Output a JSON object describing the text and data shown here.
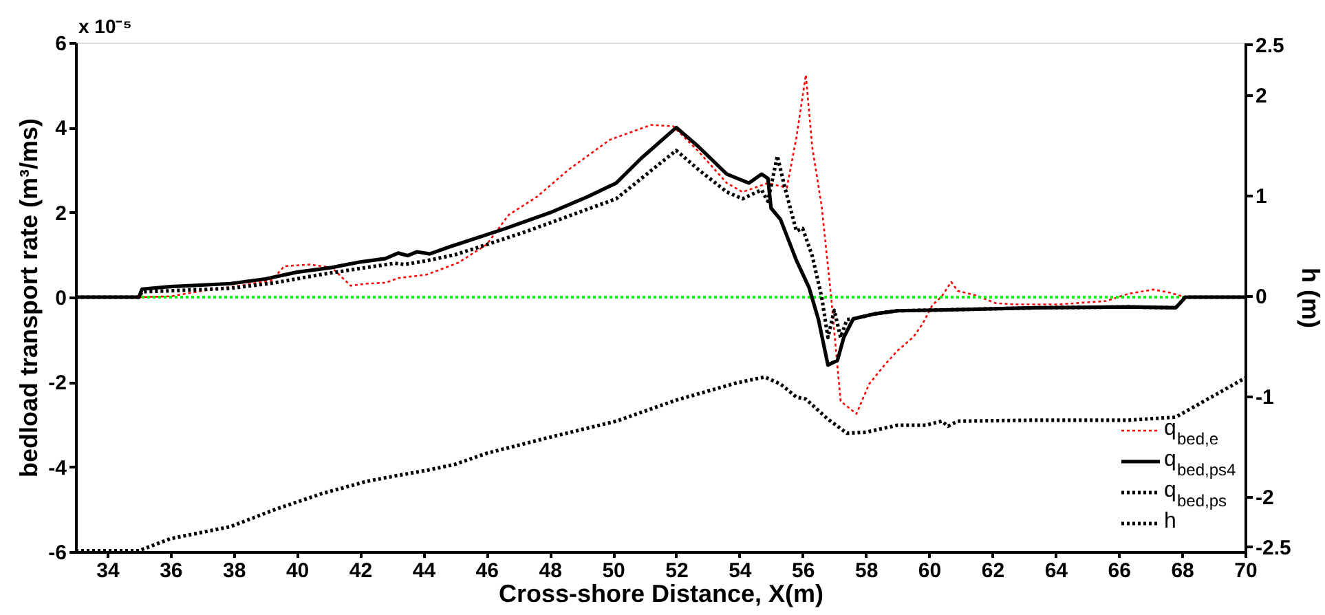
{
  "chart_data": {
    "type": "line",
    "xlabel": "Cross-shore Distance, X(m)",
    "ylabel": "bedload transport rate (m³/ms)",
    "y2label": "h (m)",
    "annotations": [
      "x 10⁻⁵"
    ],
    "xlim": [
      33,
      70
    ],
    "xticks": [
      34,
      36,
      38,
      40,
      42,
      44,
      46,
      48,
      50,
      52,
      54,
      56,
      58,
      60,
      62,
      64,
      66,
      68,
      70
    ],
    "ylim": [
      -6,
      6
    ],
    "yticks": [
      -6,
      -4,
      -2,
      0,
      2,
      4,
      6
    ],
    "y2lim": [
      -2.55,
      2.52
    ],
    "y2ticks": [
      -2.5,
      -2,
      -1,
      0,
      1,
      2,
      2.5
    ],
    "grid": false,
    "legend": "bottom right",
    "marker": "none",
    "ref_lines": [
      {
        "axis": "y",
        "value": 0,
        "color": "#00ff00",
        "line_style": "dotted"
      }
    ],
    "series": [
      {
        "name": "q$_{bed,e}$",
        "color": "#ff0000",
        "line_style": "dotted",
        "x": [
          35,
          36,
          37.1,
          38.2,
          39.2,
          39.6,
          40.4,
          41.1,
          41.7,
          42.2,
          42.8,
          43.2,
          44.1,
          45.1,
          46,
          46.7,
          47.6,
          48.6,
          49.9,
          51.2,
          51.9,
          52.7,
          53.6,
          54.1,
          54.9,
          55.5,
          55.8,
          56.1,
          56.3,
          56.6,
          56.9,
          57.2,
          57.7,
          58.1,
          58.6,
          59.0,
          59.5,
          59.8,
          60.1,
          60.4,
          60.7,
          60.9,
          61.5,
          62.1,
          62.7,
          64.1,
          65.6,
          66.3,
          67.1,
          67.6,
          68.1,
          70
        ],
        "values": [
          0,
          0.02,
          0.16,
          0.27,
          0.4,
          0.73,
          0.77,
          0.7,
          0.27,
          0.32,
          0.34,
          0.45,
          0.53,
          0.81,
          1.24,
          1.94,
          2.37,
          3.01,
          3.71,
          4.06,
          4.03,
          3.44,
          2.69,
          2.48,
          2.69,
          2.58,
          3.76,
          5.24,
          3.55,
          2.15,
          0.01,
          -2.45,
          -2.75,
          -2.05,
          -1.59,
          -1.26,
          -0.94,
          -0.62,
          -0.19,
          0.02,
          0.36,
          0.15,
          0.04,
          -0.14,
          -0.17,
          -0.17,
          -0.09,
          0.08,
          0.18,
          0.11,
          0,
          0
        ]
      },
      {
        "name": "q$_{bed,ps4}$",
        "color": "#000000",
        "line_style": "solid",
        "x": [
          33,
          35,
          35.1,
          36,
          37.9,
          39,
          40,
          41.1,
          42,
          42.8,
          43.2,
          43.5,
          43.8,
          44.2,
          44.8,
          45.5,
          46.6,
          48,
          49.2,
          50.1,
          50.9,
          52,
          52.7,
          53.6,
          54.3,
          54.7,
          54.9,
          55,
          55.3,
          55.8,
          56.2,
          56.5,
          56.8,
          57.1,
          57.3,
          57.6,
          58.3,
          59,
          60.5,
          63.4,
          66.3,
          67.8,
          68.0,
          68.1,
          70
        ],
        "values": [
          0,
          0,
          0.19,
          0.25,
          0.32,
          0.43,
          0.59,
          0.7,
          0.83,
          0.91,
          1.04,
          0.98,
          1.07,
          1.02,
          1.18,
          1.35,
          1.62,
          1.99,
          2.37,
          2.69,
          3.28,
          4.0,
          3.55,
          2.9,
          2.69,
          2.9,
          2.8,
          2.1,
          1.83,
          0.87,
          0.23,
          -0.53,
          -1.6,
          -1.49,
          -0.95,
          -0.51,
          -0.39,
          -0.32,
          -0.3,
          -0.25,
          -0.23,
          -0.25,
          -0.09,
          0,
          0
        ]
      },
      {
        "name": "q$_{bed,ps}$",
        "color": "#000000",
        "line_style": "dotted",
        "x": [
          33,
          35,
          35.1,
          36,
          37.9,
          39.3,
          40.8,
          42.2,
          43.1,
          43.4,
          44.1,
          45,
          45.8,
          47.3,
          48.7,
          50.1,
          50.9,
          52,
          52.7,
          53.6,
          54.1,
          54.7,
          54.9,
          55.2,
          55.4,
          55.8,
          56.0,
          56.3,
          56.6,
          56.8,
          57.0,
          57.2,
          57.4,
          57.6,
          58.3,
          59,
          60.5,
          63.4,
          66.3,
          67.8,
          68.0,
          68.1,
          70
        ],
        "values": [
          0,
          0,
          0.13,
          0.15,
          0.21,
          0.34,
          0.54,
          0.7,
          0.8,
          0.77,
          0.86,
          1.0,
          1.19,
          1.56,
          1.94,
          2.32,
          2.8,
          3.46,
          3.01,
          2.48,
          2.32,
          2.53,
          2.26,
          3.33,
          2.69,
          1.56,
          1.62,
          0.98,
          0.01,
          -0.95,
          -0.31,
          -0.95,
          -0.53,
          -0.51,
          -0.39,
          -0.32,
          -0.3,
          -0.25,
          -0.23,
          -0.25,
          -0.09,
          0,
          0
        ]
      },
      {
        "name": "h",
        "color": "#000000",
        "line_style": "dotted",
        "axis": "y2",
        "x": [
          33,
          35,
          36,
          37.9,
          39.3,
          40.8,
          42.2,
          43.2,
          44.1,
          45,
          46,
          48,
          50.1,
          52,
          53.9,
          54.8,
          55.3,
          55.8,
          56.1,
          56.8,
          57.4,
          58,
          59,
          59.9,
          60.4,
          60.6,
          60.9,
          63.4,
          66.3,
          67.8,
          70
        ],
        "values": [
          -2.54,
          -2.54,
          -2.42,
          -2.3,
          -2.13,
          -1.97,
          -1.85,
          -1.79,
          -1.74,
          -1.68,
          -1.57,
          -1.41,
          -1.25,
          -1.04,
          -0.87,
          -0.81,
          -0.88,
          -1.01,
          -1.03,
          -1.23,
          -1.37,
          -1.36,
          -1.29,
          -1.29,
          -1.25,
          -1.3,
          -1.25,
          -1.24,
          -1.24,
          -1.21,
          -0.82
        ]
      }
    ]
  }
}
